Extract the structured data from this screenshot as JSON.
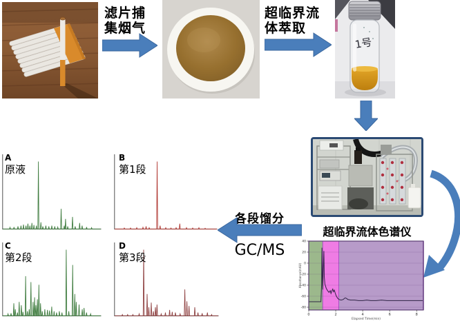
{
  "figure": {
    "background": "#ffffff",
    "arrow_color": "#4a7ebb",
    "arrow_edge_color": "#3b679e"
  },
  "flow": {
    "step1_line1": "滤片捕",
    "step1_line2": "集烟气",
    "step2_line1": "超临界流",
    "step2_line2": "体萃取",
    "vial_mark": "1号",
    "instrument_caption": "超临界流体色谱仪",
    "fraction_label": "各段馏分",
    "gcms_label": "GC/MS"
  },
  "chart_data": [
    {
      "id": "sfc-chromatogram",
      "type": "line",
      "title": "",
      "xlabel": "Elapsed Time(min)",
      "ylabel": "Absorbance(mAU)",
      "xlim": [
        0,
        8.5
      ],
      "ylim": [
        -85,
        40
      ],
      "xticks": [
        0,
        2,
        4,
        6,
        8
      ],
      "yticks": [
        40,
        20,
        0,
        -20,
        -40,
        -60,
        -80
      ],
      "grid": true,
      "line_color": "#2e2344",
      "border_color": "#5a3d73",
      "regions": [
        {
          "from": 0,
          "to": 1.05,
          "color": "#9cb88c"
        },
        {
          "from": 1.05,
          "to": 2.25,
          "color": "#ef7ce4"
        },
        {
          "from": 2.25,
          "to": 8.5,
          "color": "#b79bc9"
        }
      ],
      "points": [
        [
          0,
          -70
        ],
        [
          0.9,
          -70
        ],
        [
          0.95,
          -40
        ],
        [
          0.98,
          28
        ],
        [
          1.01,
          -20
        ],
        [
          1.04,
          -48
        ],
        [
          1.08,
          -10
        ],
        [
          1.12,
          22
        ],
        [
          1.15,
          -25
        ],
        [
          1.2,
          -38
        ],
        [
          1.3,
          -46
        ],
        [
          1.4,
          -50
        ],
        [
          1.5,
          -53
        ],
        [
          1.6,
          -50
        ],
        [
          1.65,
          -55
        ],
        [
          1.72,
          -50
        ],
        [
          1.78,
          -47
        ],
        [
          1.84,
          -52
        ],
        [
          1.9,
          -49
        ],
        [
          1.97,
          -55
        ],
        [
          2.05,
          -60
        ],
        [
          2.15,
          -64
        ],
        [
          2.25,
          -66
        ],
        [
          2.4,
          -67
        ],
        [
          2.55,
          -66
        ],
        [
          2.7,
          -63
        ],
        [
          2.8,
          -64
        ],
        [
          2.9,
          -66
        ],
        [
          3.1,
          -67
        ],
        [
          3.4,
          -67
        ],
        [
          3.7,
          -68
        ],
        [
          4.0,
          -68
        ],
        [
          4.3,
          -67
        ],
        [
          4.6,
          -68
        ],
        [
          5.0,
          -68
        ],
        [
          5.4,
          -67
        ],
        [
          5.8,
          -68
        ],
        [
          6.2,
          -68
        ],
        [
          6.6,
          -68
        ],
        [
          7.0,
          -68
        ],
        [
          7.4,
          -68
        ],
        [
          7.8,
          -68
        ],
        [
          8.2,
          -68
        ],
        [
          8.45,
          -68
        ]
      ]
    },
    {
      "id": "gcms-panels",
      "type": "line",
      "description": "GC/MS chromatograms of fractions",
      "axis_color": "#6f6f6f",
      "panels": [
        {
          "label": "A",
          "name": "原液",
          "color": "#3f7c3f",
          "peaks": [
            [
              0.08,
              0.025
            ],
            [
              0.12,
              0.03
            ],
            [
              0.16,
              0.04
            ],
            [
              0.19,
              0.05
            ],
            [
              0.215,
              0.065
            ],
            [
              0.24,
              0.05
            ],
            [
              0.26,
              0.08
            ],
            [
              0.28,
              0.05
            ],
            [
              0.3,
              0.09
            ],
            [
              0.32,
              0.06
            ],
            [
              0.345,
              0.05
            ],
            [
              0.365,
              1.0
            ],
            [
              0.39,
              0.1
            ],
            [
              0.41,
              0.04
            ],
            [
              0.44,
              0.05
            ],
            [
              0.47,
              0.04
            ],
            [
              0.5,
              0.05
            ],
            [
              0.53,
              0.04
            ],
            [
              0.56,
              0.03
            ],
            [
              0.594,
              0.3
            ],
            [
              0.625,
              0.05
            ],
            [
              0.638,
              0.15
            ],
            [
              0.66,
              0.04
            ],
            [
              0.708,
              0.18
            ],
            [
              0.735,
              0.04
            ],
            [
              0.78,
              0.09
            ],
            [
              0.805,
              0.05
            ],
            [
              0.85,
              0.03
            ],
            [
              0.9,
              0.02
            ]
          ]
        },
        {
          "label": "B",
          "name": "第1段",
          "color": "#b23b35",
          "peaks": [
            [
              0.1,
              0.015
            ],
            [
              0.16,
              0.015
            ],
            [
              0.22,
              0.02
            ],
            [
              0.28,
              0.025
            ],
            [
              0.31,
              0.04
            ],
            [
              0.34,
              0.02
            ],
            [
              0.417,
              1.0
            ],
            [
              0.445,
              0.05
            ],
            [
              0.5,
              0.02
            ],
            [
              0.55,
              0.015
            ],
            [
              0.6,
              0.02
            ],
            [
              0.635,
              0.08
            ],
            [
              0.7,
              0.02
            ],
            [
              0.76,
              0.015
            ],
            [
              0.82,
              0.02
            ],
            [
              0.88,
              0.012
            ]
          ]
        },
        {
          "label": "C",
          "name": "第2段",
          "color": "#3f7c3f",
          "peaks": [
            [
              0.06,
              0.03
            ],
            [
              0.09,
              0.04
            ],
            [
              0.118,
              0.19
            ],
            [
              0.133,
              0.1
            ],
            [
              0.155,
              0.05
            ],
            [
              0.172,
              0.21
            ],
            [
              0.194,
              0.16
            ],
            [
              0.21,
              0.06
            ],
            [
              0.237,
              0.6
            ],
            [
              0.254,
              0.07
            ],
            [
              0.273,
              0.1
            ],
            [
              0.29,
              0.51
            ],
            [
              0.312,
              0.21
            ],
            [
              0.327,
              0.28
            ],
            [
              0.34,
              0.16
            ],
            [
              0.355,
              0.25
            ],
            [
              0.37,
              0.47
            ],
            [
              0.387,
              0.19
            ],
            [
              0.404,
              0.07
            ],
            [
              0.43,
              0.1
            ],
            [
              0.456,
              0.09
            ],
            [
              0.477,
              0.08
            ],
            [
              0.499,
              0.14
            ],
            [
              0.523,
              0.07
            ],
            [
              0.548,
              0.05
            ],
            [
              0.576,
              0.07
            ],
            [
              0.602,
              0.05
            ],
            [
              0.645,
              1.0
            ],
            [
              0.671,
              0.07
            ],
            [
              0.71,
              0.77
            ],
            [
              0.731,
              0.33
            ],
            [
              0.746,
              0.21
            ],
            [
              0.774,
              0.17
            ],
            [
              0.806,
              0.1
            ],
            [
              0.824,
              0.12
            ],
            [
              0.849,
              0.05
            ],
            [
              0.89,
              0.03
            ]
          ]
        },
        {
          "label": "D",
          "name": "第3段",
          "color": "#8e4040",
          "peaks": [
            [
              0.08,
              0.02
            ],
            [
              0.13,
              0.02
            ],
            [
              0.18,
              0.02
            ],
            [
              0.24,
              0.03
            ],
            [
              0.283,
              1.0
            ],
            [
              0.316,
              0.33
            ],
            [
              0.332,
              0.13
            ],
            [
              0.355,
              0.2
            ],
            [
              0.375,
              0.07
            ],
            [
              0.395,
              0.13
            ],
            [
              0.41,
              0.17
            ],
            [
              0.45,
              0.03
            ],
            [
              0.49,
              0.05
            ],
            [
              0.53,
              0.09
            ],
            [
              0.555,
              0.06
            ],
            [
              0.585,
              0.05
            ],
            [
              0.63,
              0.03
            ],
            [
              0.675,
              0.4
            ],
            [
              0.695,
              0.22
            ],
            [
              0.715,
              0.15
            ],
            [
              0.77,
              0.13
            ],
            [
              0.8,
              0.05
            ],
            [
              0.84,
              0.04
            ],
            [
              0.89,
              0.05
            ],
            [
              0.93,
              0.02
            ]
          ]
        }
      ]
    }
  ]
}
